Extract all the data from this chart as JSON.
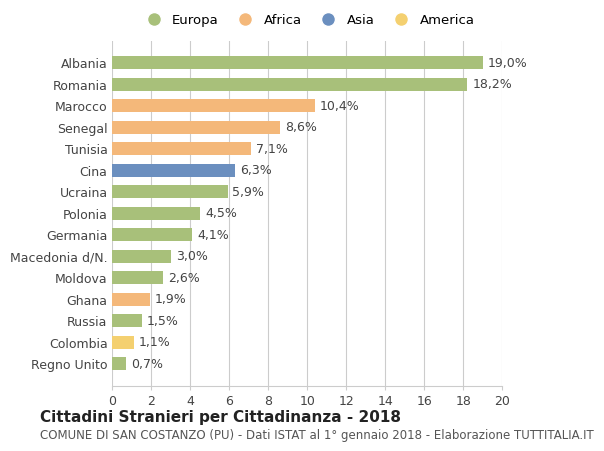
{
  "countries": [
    "Albania",
    "Romania",
    "Marocco",
    "Senegal",
    "Tunisia",
    "Cina",
    "Ucraina",
    "Polonia",
    "Germania",
    "Macedonia d/N.",
    "Moldova",
    "Ghana",
    "Russia",
    "Colombia",
    "Regno Unito"
  ],
  "values": [
    19.0,
    18.2,
    10.4,
    8.6,
    7.1,
    6.3,
    5.9,
    4.5,
    4.1,
    3.0,
    2.6,
    1.9,
    1.5,
    1.1,
    0.7
  ],
  "labels": [
    "19,0%",
    "18,2%",
    "10,4%",
    "8,6%",
    "7,1%",
    "6,3%",
    "5,9%",
    "4,5%",
    "4,1%",
    "3,0%",
    "2,6%",
    "1,9%",
    "1,5%",
    "1,1%",
    "0,7%"
  ],
  "continents": [
    "Europa",
    "Europa",
    "Africa",
    "Africa",
    "Africa",
    "Asia",
    "Europa",
    "Europa",
    "Europa",
    "Europa",
    "Europa",
    "Africa",
    "Europa",
    "America",
    "Europa"
  ],
  "colors": {
    "Europa": "#a8c07a",
    "Africa": "#f4b87a",
    "Asia": "#6b8fbf",
    "America": "#f4d070"
  },
  "xlim": [
    0,
    20
  ],
  "xticks": [
    0,
    2,
    4,
    6,
    8,
    10,
    12,
    14,
    16,
    18,
    20
  ],
  "title": "Cittadini Stranieri per Cittadinanza - 2018",
  "subtitle": "COMUNE DI SAN COSTANZO (PU) - Dati ISTAT al 1° gennaio 2018 - Elaborazione TUTTITALIA.IT",
  "background_color": "#ffffff",
  "grid_color": "#cccccc",
  "bar_height": 0.6,
  "label_fontsize": 9,
  "tick_fontsize": 9,
  "title_fontsize": 11,
  "subtitle_fontsize": 8.5,
  "legend_order": [
    "Europa",
    "Africa",
    "Asia",
    "America"
  ]
}
